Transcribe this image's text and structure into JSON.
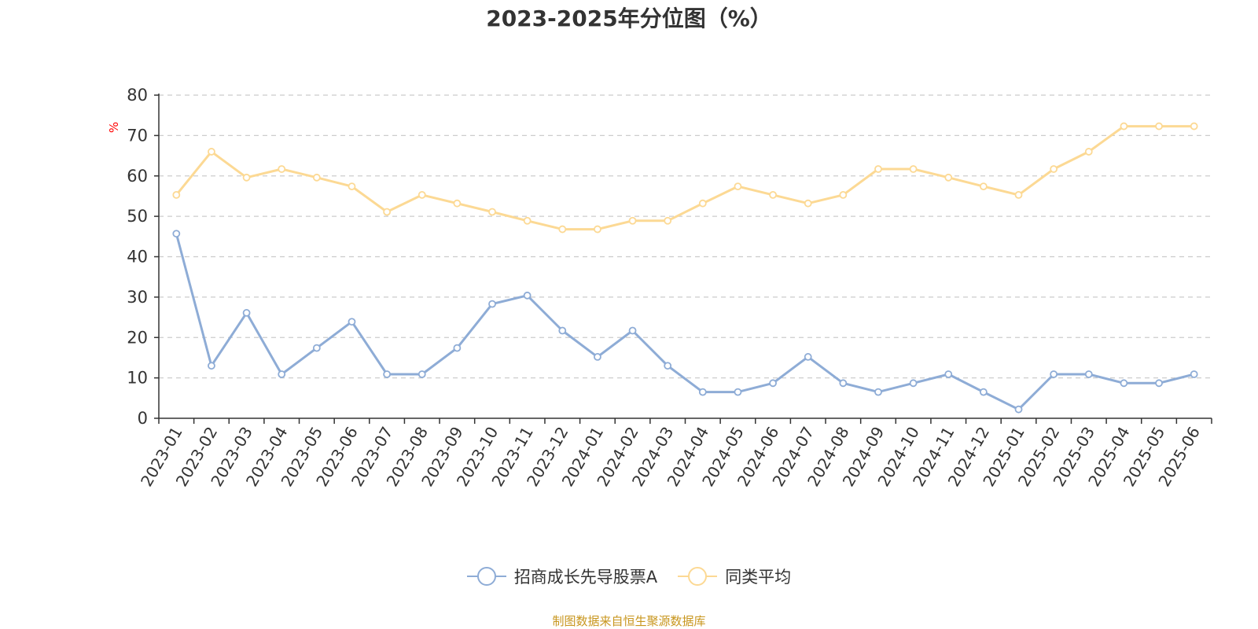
{
  "title": "2023-2025年分位图（%）",
  "source": "制图数据来自恒生聚源数据库",
  "colors": {
    "series_a": "#8eacd6",
    "series_b": "#fcd994",
    "unit": "#ff0000",
    "source": "#c8961e",
    "grid": "#cccccc",
    "axis": "#333333"
  },
  "chart_data": {
    "type": "line",
    "title": "2023-2025年分位图（%）",
    "xlabel": "",
    "ylabel": "%",
    "ylim": [
      0,
      80
    ],
    "yticks": [
      0,
      10,
      20,
      30,
      40,
      50,
      60,
      70,
      80
    ],
    "grid": true,
    "legend_position": "bottom",
    "categories": [
      "2023-01",
      "2023-02",
      "2023-03",
      "2023-04",
      "2023-05",
      "2023-06",
      "2023-07",
      "2023-08",
      "2023-09",
      "2023-10",
      "2023-11",
      "2023-12",
      "2024-01",
      "2024-02",
      "2024-03",
      "2024-04",
      "2024-05",
      "2024-06",
      "2024-07",
      "2024-08",
      "2024-09",
      "2024-10",
      "2024-11",
      "2024-12",
      "2025-01",
      "2025-02",
      "2025-03",
      "2025-04",
      "2025-05",
      "2025-06"
    ],
    "series": [
      {
        "name": "招商成长先导股票A",
        "values": [
          45.7,
          13.0,
          26.1,
          10.9,
          17.4,
          23.9,
          10.9,
          10.9,
          17.4,
          28.3,
          30.4,
          21.7,
          15.2,
          21.7,
          13.0,
          6.5,
          6.5,
          8.7,
          15.2,
          8.7,
          6.5,
          8.7,
          10.9,
          6.5,
          2.2,
          10.9,
          10.9,
          8.7,
          8.7,
          10.9
        ]
      },
      {
        "name": "同类平均",
        "values": [
          55.3,
          66.0,
          59.6,
          61.7,
          59.6,
          57.4,
          51.1,
          55.3,
          53.2,
          51.1,
          48.9,
          46.8,
          46.8,
          48.9,
          48.9,
          53.2,
          57.4,
          55.3,
          53.2,
          55.3,
          61.7,
          61.7,
          59.6,
          57.4,
          55.3,
          61.7,
          66.0,
          72.3,
          72.3,
          72.3
        ]
      }
    ]
  }
}
